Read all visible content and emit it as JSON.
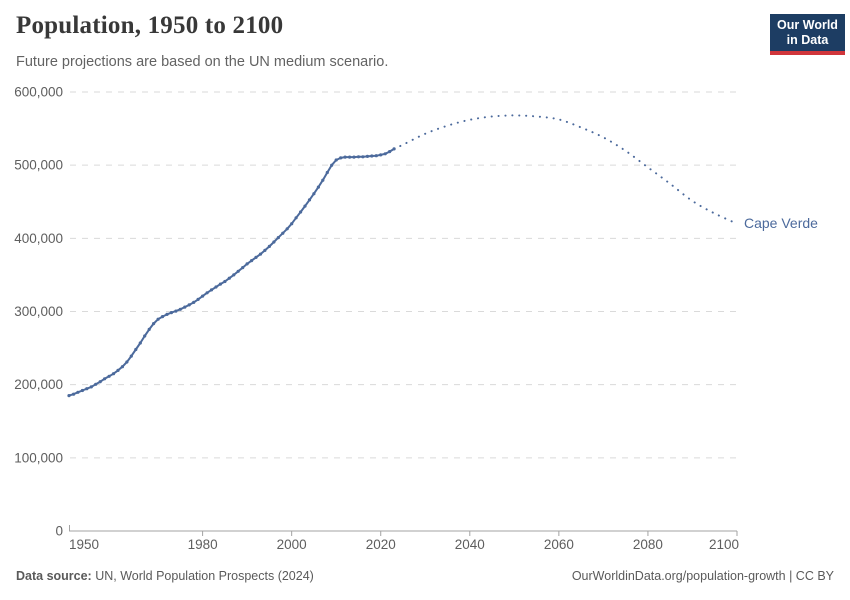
{
  "header": {
    "title": "Population, 1950 to 2100",
    "subtitle": "Future projections are based on the UN medium scenario.",
    "logo": {
      "line1": "Our World",
      "line2": "in Data"
    }
  },
  "footer": {
    "source_label": "Data source:",
    "source_text": " UN, World Population Prospects (2024)",
    "credit": "OurWorldinData.org/population-growth | CC BY"
  },
  "colors": {
    "series": "#4c6a9c",
    "gridline": "#dadada",
    "axis": "#a3a3a3",
    "tick_label": "#5e5e5e",
    "logo_bg": "#1d3d63",
    "logo_accent": "#d0353b"
  },
  "chart_data": {
    "type": "line",
    "title": "Population, 1950 to 2100",
    "subtitle": "Future projections are based on the UN medium scenario.",
    "entity": "Cape Verde",
    "xlabel": "",
    "ylabel": "",
    "xlim": [
      1950,
      2100
    ],
    "ylim": [
      0,
      600000
    ],
    "grid": "horizontal-dashed",
    "legend_position": "end-of-line-label",
    "x_ticks": [
      1950,
      1980,
      2000,
      2020,
      2040,
      2060,
      2080,
      2100
    ],
    "x_tick_labels": [
      "1950",
      "1980",
      "2000",
      "2020",
      "2040",
      "2060",
      "2080",
      "2100"
    ],
    "y_ticks": [
      0,
      100000,
      200000,
      300000,
      400000,
      500000,
      600000
    ],
    "y_tick_labels": [
      "0",
      "100,000",
      "200,000",
      "300,000",
      "400,000",
      "500,000",
      "600,000"
    ],
    "series": [
      {
        "name": "Cape Verde — observed",
        "style": "solid-with-yearly-markers",
        "points": [
          [
            1950,
            185000
          ],
          [
            1951,
            187000
          ],
          [
            1952,
            189500
          ],
          [
            1953,
            192000
          ],
          [
            1954,
            194500
          ],
          [
            1955,
            197000
          ],
          [
            1956,
            200500
          ],
          [
            1957,
            204000
          ],
          [
            1958,
            208000
          ],
          [
            1959,
            211500
          ],
          [
            1960,
            215000
          ],
          [
            1961,
            219500
          ],
          [
            1962,
            224500
          ],
          [
            1963,
            231000
          ],
          [
            1964,
            239000
          ],
          [
            1965,
            248000
          ],
          [
            1966,
            257000
          ],
          [
            1967,
            266500
          ],
          [
            1968,
            275500
          ],
          [
            1969,
            283500
          ],
          [
            1970,
            289500
          ],
          [
            1971,
            293000
          ],
          [
            1972,
            296000
          ],
          [
            1973,
            298500
          ],
          [
            1974,
            300500
          ],
          [
            1975,
            303000
          ],
          [
            1976,
            306000
          ],
          [
            1977,
            309000
          ],
          [
            1978,
            312500
          ],
          [
            1979,
            316500
          ],
          [
            1980,
            321000
          ],
          [
            1981,
            325500
          ],
          [
            1982,
            329500
          ],
          [
            1983,
            333500
          ],
          [
            1984,
            337500
          ],
          [
            1985,
            341000
          ],
          [
            1986,
            345500
          ],
          [
            1987,
            350000
          ],
          [
            1988,
            355000
          ],
          [
            1989,
            360000
          ],
          [
            1990,
            365000
          ],
          [
            1991,
            369500
          ],
          [
            1992,
            374000
          ],
          [
            1993,
            378500
          ],
          [
            1994,
            383500
          ],
          [
            1995,
            389000
          ],
          [
            1996,
            395000
          ],
          [
            1997,
            401000
          ],
          [
            1998,
            407000
          ],
          [
            1999,
            413000
          ],
          [
            2000,
            420000
          ],
          [
            2001,
            428000
          ],
          [
            2002,
            436000
          ],
          [
            2003,
            444000
          ],
          [
            2004,
            452500
          ],
          [
            2005,
            461000
          ],
          [
            2006,
            470000
          ],
          [
            2007,
            479500
          ],
          [
            2008,
            490000
          ],
          [
            2009,
            500000
          ],
          [
            2010,
            507000
          ],
          [
            2011,
            510000
          ],
          [
            2012,
            511000
          ],
          [
            2013,
            511000
          ],
          [
            2014,
            511000
          ],
          [
            2015,
            511500
          ],
          [
            2016,
            511500
          ],
          [
            2017,
            512000
          ],
          [
            2018,
            512500
          ],
          [
            2019,
            513000
          ],
          [
            2020,
            514000
          ],
          [
            2021,
            515500
          ],
          [
            2022,
            518500
          ],
          [
            2023,
            522300
          ]
        ]
      },
      {
        "name": "Cape Verde — UN medium-scenario projection",
        "style": "dotted",
        "points": [
          [
            2023,
            522300
          ],
          [
            2025,
            528000
          ],
          [
            2030,
            543000
          ],
          [
            2035,
            554000
          ],
          [
            2040,
            562000
          ],
          [
            2045,
            566500
          ],
          [
            2050,
            568000
          ],
          [
            2055,
            566500
          ],
          [
            2060,
            562500
          ],
          [
            2065,
            551500
          ],
          [
            2070,
            538000
          ],
          [
            2075,
            519500
          ],
          [
            2080,
            497000
          ],
          [
            2085,
            474500
          ],
          [
            2090,
            451000
          ],
          [
            2095,
            434000
          ],
          [
            2100,
            420000
          ]
        ]
      }
    ]
  }
}
